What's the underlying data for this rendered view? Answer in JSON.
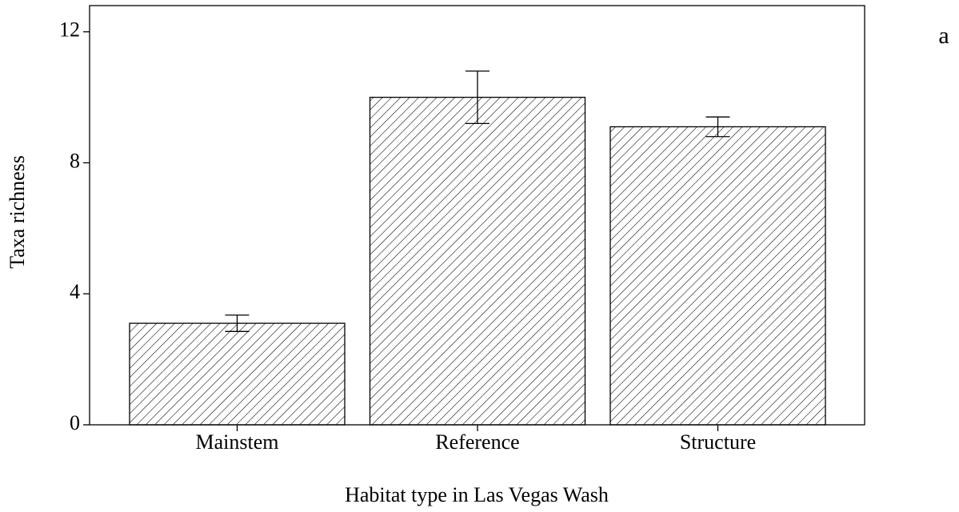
{
  "chart_data": {
    "type": "bar",
    "panel_label": "a",
    "x_label": "Habitat type in Las Vegas Wash",
    "y_label": "Taxa richness",
    "categories": [
      "Mainstem",
      "Reference",
      "Structure"
    ],
    "values": [
      3.1,
      10.0,
      9.1
    ],
    "errors": [
      0.25,
      0.8,
      0.3
    ],
    "ylim": [
      0,
      12.8
    ],
    "yticks": [
      0,
      4,
      8,
      12
    ],
    "grid": false,
    "color": "#000000"
  }
}
